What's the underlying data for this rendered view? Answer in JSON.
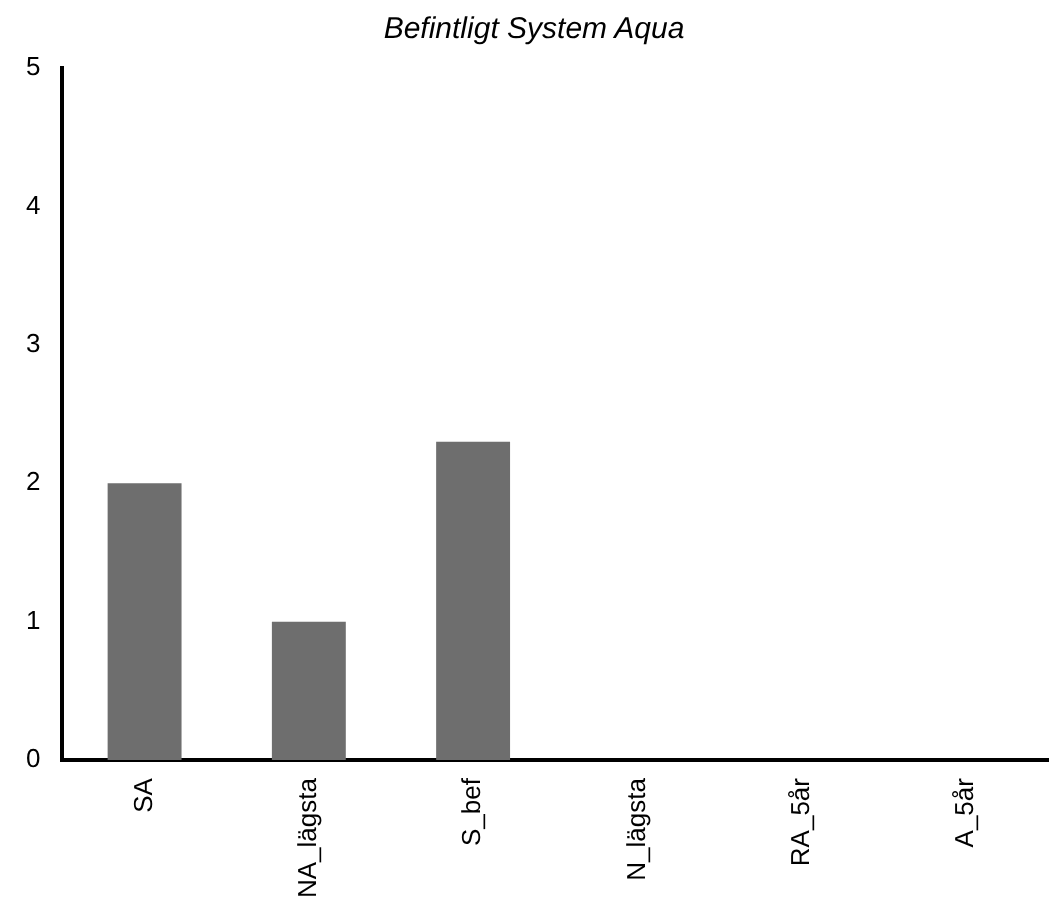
{
  "chart_data": {
    "type": "bar",
    "title": "Befintligt System Aqua",
    "categories": [
      "SA",
      "NA_lägsta",
      "S_bef",
      "N_lägsta",
      "RA_5år",
      "A_5år"
    ],
    "values": [
      2,
      1,
      2.3,
      0,
      0,
      0
    ],
    "color": "#6e6e6e",
    "ylim": [
      0,
      5
    ],
    "yticks": [
      0,
      1,
      2,
      3,
      4,
      5
    ],
    "grid": false,
    "legend": false
  }
}
